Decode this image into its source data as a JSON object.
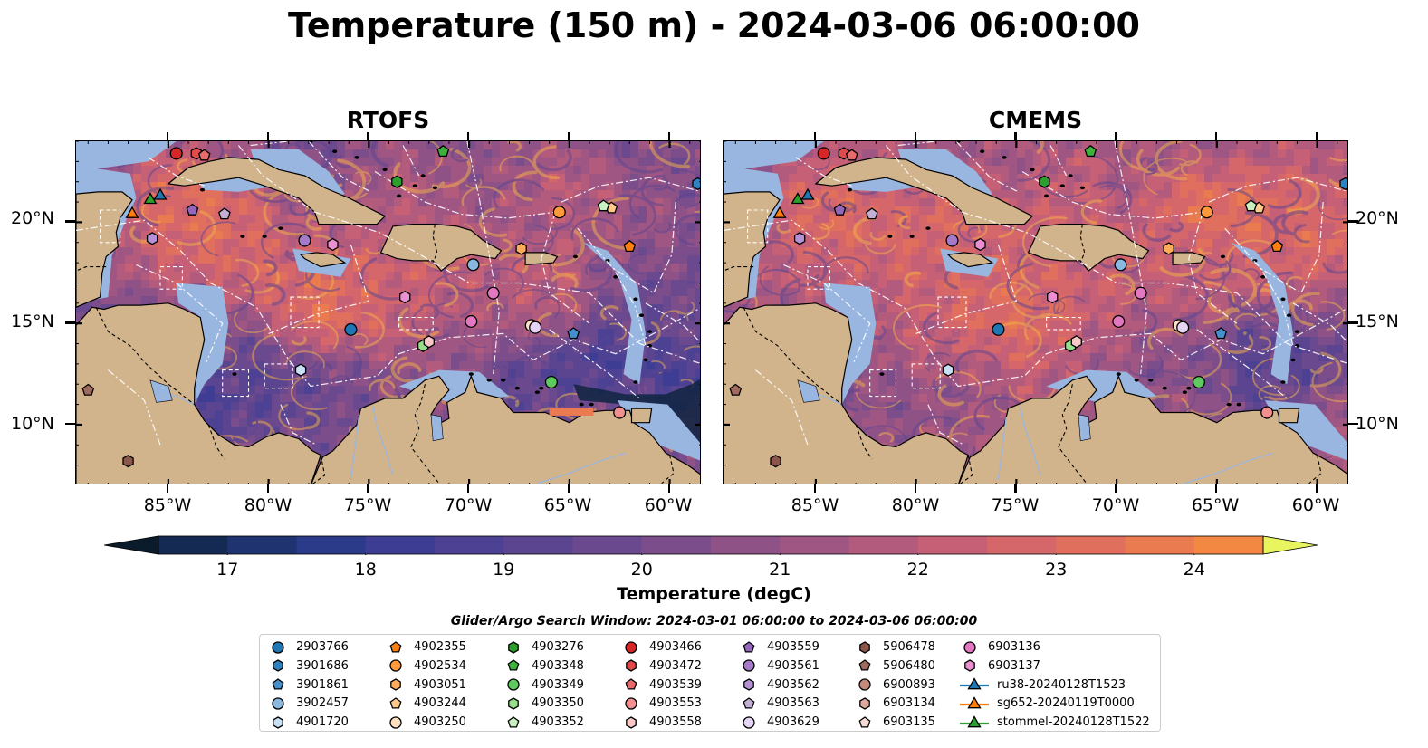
{
  "title": "Temperature (150 m) - 2024-03-06 06:00:00",
  "panels": [
    {
      "title": "RTOFS"
    },
    {
      "title": "CMEMS"
    }
  ],
  "axes": {
    "lat_labels": [
      "20°N",
      "15°N",
      "10°N"
    ],
    "lon_labels": [
      "85°W",
      "80°W",
      "75°W",
      "70°W",
      "65°W",
      "60°W"
    ],
    "lat_values": [
      20,
      15,
      10
    ],
    "lon_values": [
      -85,
      -80,
      -75,
      -70,
      -65,
      -60
    ],
    "extent": {
      "lon_min": -89.6,
      "lon_max": -58.4,
      "lat_min": 7.0,
      "lat_max": 24.0
    }
  },
  "colorbar": {
    "label": "Temperature (degC)",
    "ticks": [
      "17",
      "18",
      "19",
      "20",
      "21",
      "22",
      "23",
      "24"
    ],
    "tick_values": [
      17,
      18,
      19,
      20,
      21,
      22,
      23,
      24
    ],
    "min": 16.5,
    "max": 24.5,
    "step": 0.5,
    "colors": [
      "#0c2235",
      "#142a52",
      "#1f3371",
      "#2c3a8a",
      "#3d3e93",
      "#4c4193",
      "#5b4591",
      "#6b498e",
      "#7c4d8b",
      "#8e5287",
      "#a05682",
      "#b35b7c",
      "#c56076",
      "#d5676b",
      "#e06f5e",
      "#ea7a4f",
      "#f28842",
      "#f69a3c",
      "#f7ad42",
      "#f5c250",
      "#f0d860",
      "#e8f063"
    ],
    "extend_min_color": "#0a1c2c",
    "extend_max_color": "#e9f55e"
  },
  "search_window": "Glider/Argo Search Window: 2024-03-01 06:00:00 to 2024-03-06 06:00:00",
  "legend": [
    {
      "label": "2903766",
      "marker": "circle",
      "color": "#1f77b4"
    },
    {
      "label": "3901686",
      "marker": "hexagon",
      "color": "#2f82c0"
    },
    {
      "label": "3901861",
      "marker": "pentagon",
      "color": "#4490cc"
    },
    {
      "label": "3902457",
      "marker": "circle",
      "color": "#8ab8e0"
    },
    {
      "label": "4901720",
      "marker": "hexagon",
      "color": "#c9e0f4"
    },
    {
      "label": "4902355",
      "marker": "pentagon",
      "color": "#ff7f0e"
    },
    {
      "label": "4902534",
      "marker": "circle",
      "color": "#ff9a3c"
    },
    {
      "label": "4903051",
      "marker": "hexagon",
      "color": "#ffac5a"
    },
    {
      "label": "4903244",
      "marker": "pentagon",
      "color": "#ffc98c"
    },
    {
      "label": "4903250",
      "marker": "circle",
      "color": "#ffe0c0"
    },
    {
      "label": "4903276",
      "marker": "hexagon",
      "color": "#2ca02c"
    },
    {
      "label": "4903348",
      "marker": "pentagon",
      "color": "#3cb13c"
    },
    {
      "label": "4903349",
      "marker": "circle",
      "color": "#5fca5f"
    },
    {
      "label": "4903350",
      "marker": "hexagon",
      "color": "#98df8a"
    },
    {
      "label": "4903352",
      "marker": "pentagon",
      "color": "#c8f0c0"
    },
    {
      "label": "4903466",
      "marker": "circle",
      "color": "#d62728"
    },
    {
      "label": "4903472",
      "marker": "hexagon",
      "color": "#e04a4a"
    },
    {
      "label": "4903539",
      "marker": "pentagon",
      "color": "#e86b6b"
    },
    {
      "label": "4903553",
      "marker": "circle",
      "color": "#f29090"
    },
    {
      "label": "4903558",
      "marker": "hexagon",
      "color": "#fbc8c8"
    },
    {
      "label": "4903559",
      "marker": "pentagon",
      "color": "#9467bd"
    },
    {
      "label": "4903561",
      "marker": "circle",
      "color": "#a47ac9"
    },
    {
      "label": "4903562",
      "marker": "hexagon",
      "color": "#b592d6"
    },
    {
      "label": "4903563",
      "marker": "pentagon",
      "color": "#c5b0d5"
    },
    {
      "label": "4903629",
      "marker": "circle",
      "color": "#e6d4f4"
    },
    {
      "label": "5906478",
      "marker": "hexagon",
      "color": "#8c564b"
    },
    {
      "label": "5906480",
      "marker": "pentagon",
      "color": "#a06a5e"
    },
    {
      "label": "6900893",
      "marker": "circle",
      "color": "#c48a7c"
    },
    {
      "label": "6903134",
      "marker": "hexagon",
      "color": "#dfaaa0"
    },
    {
      "label": "6903135",
      "marker": "pentagon",
      "color": "#f7dcd6"
    },
    {
      "label": "6903136",
      "marker": "circle",
      "color": "#e377c2"
    },
    {
      "label": "6903137",
      "marker": "hexagon",
      "color": "#ea8fd0"
    },
    {
      "label": "ru38-20240128T1523",
      "marker": "triangle-line",
      "color": "#1f77b4"
    },
    {
      "label": "sg652-20240119T0000",
      "marker": "triangle-line",
      "color": "#ff7f0e"
    },
    {
      "label": "stommel-20240128T1522",
      "marker": "triangle-line",
      "color": "#2ca02c"
    }
  ],
  "markers": [
    {
      "lon": -75.9,
      "lat": 14.7,
      "marker": "circle",
      "color": "#1f77b4"
    },
    {
      "lon": -58.6,
      "lat": 21.9,
      "marker": "hexagon",
      "color": "#2f82c0"
    },
    {
      "lon": -64.8,
      "lat": 14.5,
      "marker": "pentagon",
      "color": "#4490cc"
    },
    {
      "lon": -69.8,
      "lat": 17.9,
      "marker": "circle",
      "color": "#8ab8e0"
    },
    {
      "lon": -78.4,
      "lat": 12.7,
      "marker": "hexagon",
      "color": "#c9e0f4"
    },
    {
      "lon": -62.0,
      "lat": 18.8,
      "marker": "pentagon",
      "color": "#ff7f0e"
    },
    {
      "lon": -65.5,
      "lat": 20.5,
      "marker": "circle",
      "color": "#ff9a3c"
    },
    {
      "lon": -67.4,
      "lat": 18.7,
      "marker": "hexagon",
      "color": "#ffac5a"
    },
    {
      "lon": -62.9,
      "lat": 20.7,
      "marker": "pentagon",
      "color": "#ffc98c"
    },
    {
      "lon": -66.9,
      "lat": 14.9,
      "marker": "circle",
      "color": "#ffe0c0"
    },
    {
      "lon": -73.6,
      "lat": 22.0,
      "marker": "hexagon",
      "color": "#2ca02c"
    },
    {
      "lon": -71.3,
      "lat": 23.5,
      "marker": "pentagon",
      "color": "#3cb13c"
    },
    {
      "lon": -65.9,
      "lat": 12.1,
      "marker": "circle",
      "color": "#5fca5f"
    },
    {
      "lon": -72.3,
      "lat": 13.9,
      "marker": "hexagon",
      "color": "#98df8a"
    },
    {
      "lon": -63.3,
      "lat": 20.8,
      "marker": "pentagon",
      "color": "#c8f0c0"
    },
    {
      "lon": -84.6,
      "lat": 23.4,
      "marker": "circle",
      "color": "#d62728"
    },
    {
      "lon": -83.6,
      "lat": 23.4,
      "marker": "hexagon",
      "color": "#e04a4a"
    },
    {
      "lon": -83.2,
      "lat": 23.3,
      "marker": "pentagon",
      "color": "#e86b6b"
    },
    {
      "lon": -62.5,
      "lat": 10.6,
      "marker": "circle",
      "color": "#f29090"
    },
    {
      "lon": -72.0,
      "lat": 14.1,
      "marker": "hexagon",
      "color": "#fbc8c8"
    },
    {
      "lon": -83.8,
      "lat": 20.6,
      "marker": "pentagon",
      "color": "#9467bd"
    },
    {
      "lon": -78.2,
      "lat": 19.1,
      "marker": "circle",
      "color": "#a47ac9"
    },
    {
      "lon": -85.8,
      "lat": 19.2,
      "marker": "hexagon",
      "color": "#b592d6"
    },
    {
      "lon": -82.2,
      "lat": 20.4,
      "marker": "pentagon",
      "color": "#c5b0d5"
    },
    {
      "lon": -66.7,
      "lat": 14.8,
      "marker": "circle",
      "color": "#e6d4f4"
    },
    {
      "lon": -87.0,
      "lat": 8.2,
      "marker": "hexagon",
      "color": "#8c564b"
    },
    {
      "lon": -89.0,
      "lat": 11.7,
      "marker": "pentagon",
      "color": "#a06a5e"
    },
    {
      "lon": -68.8,
      "lat": 16.5,
      "marker": "circle",
      "color": "#e377c2"
    },
    {
      "lon": -73.2,
      "lat": 16.3,
      "marker": "hexagon",
      "color": "#ea8fd0"
    },
    {
      "lon": -69.9,
      "lat": 15.1,
      "marker": "circle",
      "color": "#e377c2"
    },
    {
      "lon": -76.8,
      "lat": 18.9,
      "marker": "hexagon",
      "color": "#ea8fd0"
    },
    {
      "lon": -85.4,
      "lat": 21.3,
      "marker": "triangle",
      "color": "#1f77b4"
    },
    {
      "lon": -86.8,
      "lat": 20.4,
      "marker": "triangle",
      "color": "#ff7f0e"
    },
    {
      "lon": -85.9,
      "lat": 21.1,
      "marker": "triangle",
      "color": "#2ca02c"
    }
  ]
}
